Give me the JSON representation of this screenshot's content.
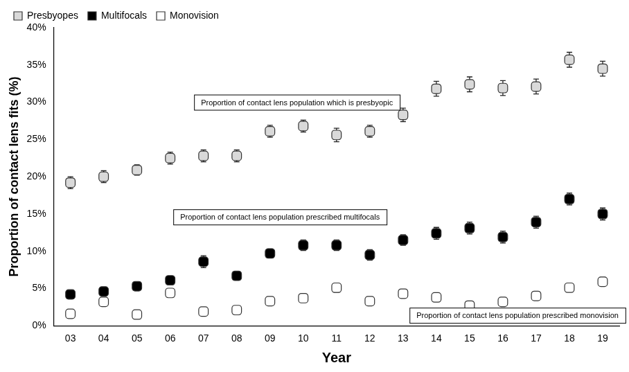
{
  "chart_data": {
    "type": "scatter",
    "x_label": "Year",
    "y_label": "Proportion of contact lens fits (%)",
    "categories": [
      "03",
      "04",
      "05",
      "06",
      "07",
      "08",
      "09",
      "10",
      "11",
      "12",
      "13",
      "14",
      "15",
      "16",
      "17",
      "18",
      "19"
    ],
    "series": [
      {
        "name": "Presbyopes",
        "color": "#d9d9d9",
        "marker": "square",
        "values": [
          19.2,
          20.0,
          20.9,
          22.5,
          22.8,
          22.8,
          26.1,
          26.8,
          25.6,
          26.1,
          28.3,
          31.8,
          32.4,
          31.9,
          32.1,
          35.7,
          34.5
        ],
        "errors": [
          0.8,
          0.8,
          0.7,
          0.8,
          0.8,
          0.8,
          0.8,
          0.8,
          0.9,
          0.8,
          0.9,
          1.0,
          1.0,
          1.0,
          1.0,
          1.0,
          1.0
        ]
      },
      {
        "name": "Multifocals",
        "color": "#000000",
        "marker": "square",
        "values": [
          4.2,
          4.6,
          5.3,
          6.1,
          8.6,
          6.7,
          9.7,
          10.8,
          10.8,
          9.5,
          11.5,
          12.4,
          13.1,
          11.9,
          13.9,
          17.0,
          15.0
        ],
        "errors": [
          0.4,
          0.4,
          0.5,
          0.5,
          0.8,
          0.5,
          0.6,
          0.7,
          0.7,
          0.7,
          0.7,
          0.8,
          0.8,
          0.8,
          0.8,
          0.8,
          0.8
        ]
      },
      {
        "name": "Monovision",
        "color": "#ffffff",
        "marker": "square",
        "values": [
          1.6,
          3.2,
          1.5,
          4.4,
          1.9,
          2.1,
          3.3,
          3.7,
          5.1,
          3.3,
          4.3,
          3.8,
          2.7,
          3.2,
          4.0,
          5.1,
          5.9
        ],
        "errors": [
          0.3,
          0.4,
          0.3,
          0.4,
          0.3,
          0.3,
          0.4,
          0.4,
          0.6,
          0.4,
          0.5,
          0.5,
          0.4,
          0.4,
          0.5,
          0.5,
          0.6
        ]
      }
    ],
    "ylim": [
      0,
      40
    ],
    "yticks": [
      {
        "value": 0,
        "label": "0%"
      },
      {
        "value": 5,
        "label": "5%"
      },
      {
        "value": 10,
        "label": "10%"
      },
      {
        "value": 15,
        "label": "15%"
      },
      {
        "value": 20,
        "label": "20%"
      },
      {
        "value": 25,
        "label": "25%"
      },
      {
        "value": 30,
        "label": "30%"
      },
      {
        "value": 35,
        "label": "35%"
      },
      {
        "value": 40,
        "label": "40%"
      }
    ],
    "annotations": [
      "Proportion of contact lens population which is presbyopic",
      "Proportion of contact lens population prescribed multifocals",
      "Proportion of contact lens population prescribed monovision"
    ],
    "grid": false,
    "legend": "top-left"
  }
}
